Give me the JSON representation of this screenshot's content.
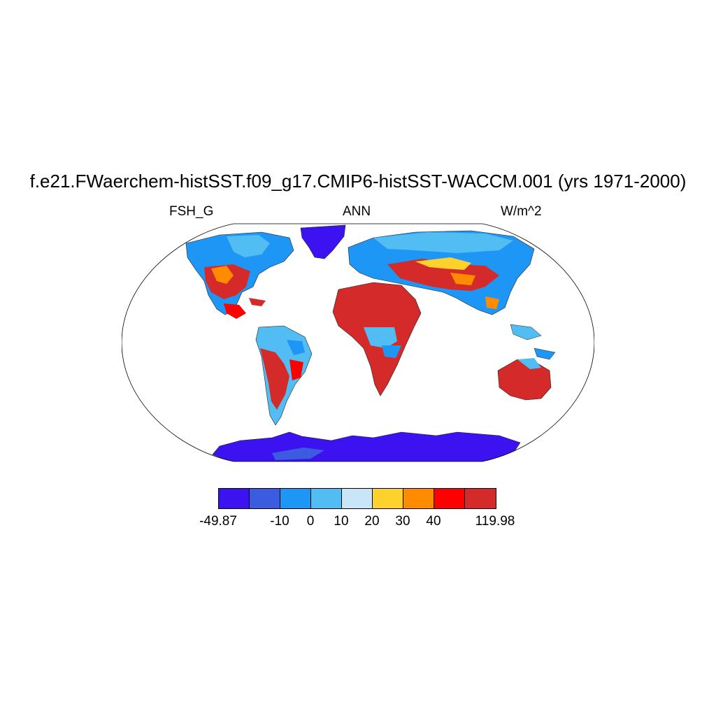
{
  "title": "f.e21.FWaerchem-histSST.f09_g17.CMIP6-histSST-WACCM.001 (yrs 1971-2000)",
  "left_label": "FSH_G",
  "center_label": "ANN",
  "right_label": "W/m^2",
  "colorbar": {
    "colors": [
      "#3c12f0",
      "#3b5be0",
      "#1e96f5",
      "#52bdf2",
      "#c8e6f8",
      "#fed12c",
      "#ff8c00",
      "#ff0000",
      "#d42a2a"
    ],
    "labels": [
      "-49.87",
      "-10",
      "0",
      "10",
      "20",
      "30",
      "40",
      "119.98"
    ],
    "label_positions": [
      0,
      2,
      3,
      4,
      5,
      6,
      7,
      9
    ]
  }
}
